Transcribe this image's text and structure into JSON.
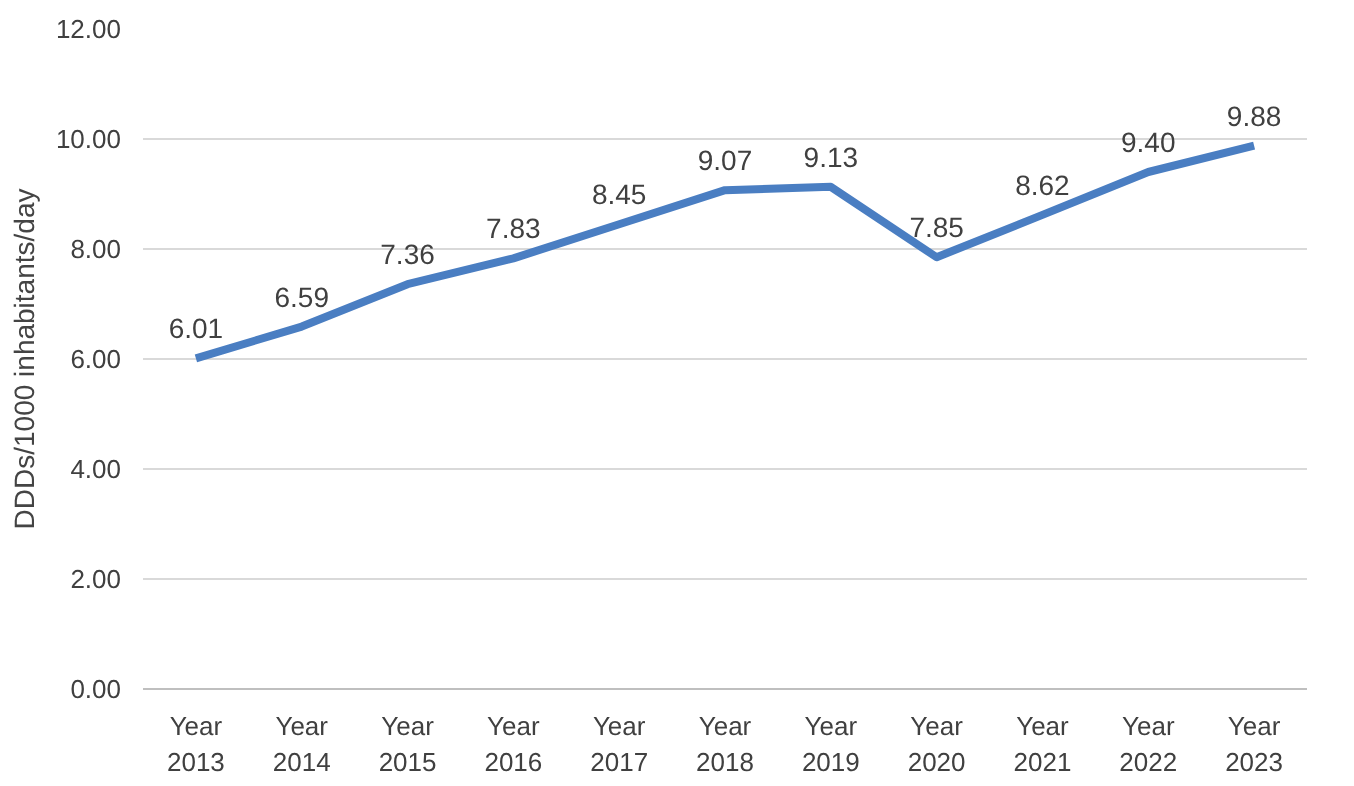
{
  "chart_data": {
    "type": "line",
    "ylabel": "DDDs/1000 inhabitants/day",
    "categories": [
      "Year 2013",
      "Year 2014",
      "Year 2015",
      "Year 2016",
      "Year 2017",
      "Year 2018",
      "Year 2019",
      "Year 2020",
      "Year 2021",
      "Year 2022",
      "Year 2023"
    ],
    "series": [
      {
        "color": "#4a7ec2",
        "values": [
          6.01,
          6.59,
          7.36,
          7.83,
          8.45,
          9.07,
          9.13,
          7.85,
          8.62,
          9.4,
          9.88
        ],
        "value_labels": [
          "6.01",
          "6.59",
          "7.36",
          "7.83",
          "8.45",
          "9.07",
          "9.13",
          "7.85",
          "8.62",
          "9.40",
          "9.88"
        ]
      }
    ],
    "ylim": [
      0,
      12
    ],
    "yticks": [
      {
        "value": 0,
        "label": "0.00"
      },
      {
        "value": 2,
        "label": "2.00"
      },
      {
        "value": 4,
        "label": "4.00"
      },
      {
        "value": 6,
        "label": "6.00"
      },
      {
        "value": 8,
        "label": "8.00"
      },
      {
        "value": 10,
        "label": "10.00"
      },
      {
        "value": 12,
        "label": "12.00"
      }
    ],
    "grid": "y",
    "marker": "none",
    "line_style": "solid"
  }
}
